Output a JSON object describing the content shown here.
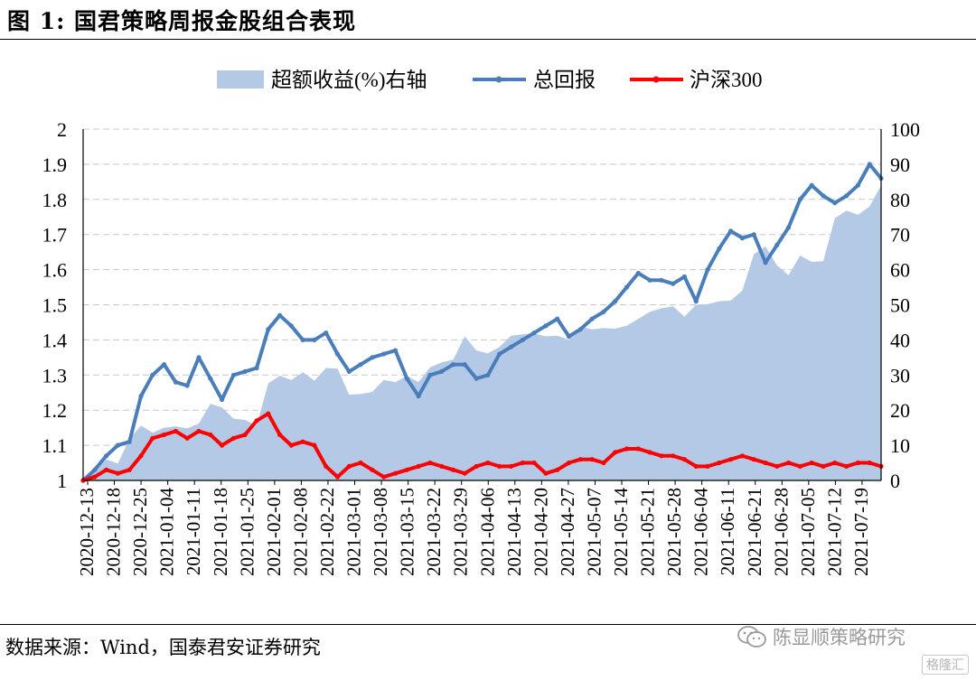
{
  "figure": {
    "title": "图 1:  国君策略周报金股组合表现",
    "source": "数据来源：Wind，国泰君安证券研究",
    "watermark": "陈显顺策略研究",
    "logo": "格隆汇"
  },
  "chart_data": {
    "type": "line",
    "legend_position": "top",
    "grid": "horizontal-dashed",
    "x_tick_labels": [
      "2020-12-13",
      "2020-12-18",
      "2020-12-25",
      "2021-01-04",
      "2021-01-11",
      "2021-01-18",
      "2021-01-25",
      "2021-02-01",
      "2021-02-08",
      "2021-02-22",
      "2021-03-01",
      "2021-03-08",
      "2021-03-15",
      "2021-03-22",
      "2021-03-29",
      "2021-04-06",
      "2021-04-13",
      "2021-04-20",
      "2021-04-27",
      "2021-05-07",
      "2021-05-14",
      "2021-05-21",
      "2021-05-28",
      "2021-06-04",
      "2021-06-11",
      "2021-06-21",
      "2021-06-28",
      "2021-07-05",
      "2021-07-12",
      "2021-07-19"
    ],
    "y_left": {
      "min": 1,
      "max": 2,
      "step": 0.1,
      "tick_labels": [
        "1",
        "1.1",
        "1.2",
        "1.3",
        "1.4",
        "1.5",
        "1.6",
        "1.7",
        "1.8",
        "1.9",
        "2"
      ]
    },
    "y_right": {
      "min": 0,
      "max": 100,
      "step": 10,
      "tick_labels": [
        "0",
        "10",
        "20",
        "30",
        "40",
        "50",
        "60",
        "70",
        "80",
        "90",
        "100"
      ]
    },
    "series": [
      {
        "name": "超额收益(%)右轴",
        "kind": "area",
        "axis": "right",
        "color": "#b4c9e6",
        "values": [
          0,
          2.3,
          6.0,
          4.8,
          11.8,
          15.6,
          13.6,
          15.0,
          15.4,
          14.8,
          16.2,
          21.8,
          20.8,
          17.6,
          17.2,
          15.6,
          27.6,
          29.8,
          28.6,
          30.8,
          28.4,
          32.0,
          31.8,
          24.4,
          24.6,
          25.2,
          28.6,
          28.0,
          29.8,
          28.0,
          32.2,
          33.6,
          34.4,
          41.0,
          37.0,
          36.2,
          38.0,
          41.2,
          41.6,
          41.8,
          41.0,
          41.2,
          40.0,
          43.8,
          43.0,
          43.4,
          43.2,
          44.0,
          46.0,
          48.0,
          49.0,
          49.6,
          46.6,
          50.0,
          50.2,
          51.0,
          51.2,
          54.0,
          64.4,
          66.6,
          61.2,
          58.4,
          64.0,
          62.2,
          62.4,
          74.6,
          76.8,
          75.6,
          78.0,
          84.0
        ]
      },
      {
        "name": "总回报",
        "kind": "line",
        "axis": "left",
        "color": "#4a7ebb",
        "values": [
          1.0,
          1.03,
          1.07,
          1.1,
          1.11,
          1.24,
          1.3,
          1.33,
          1.28,
          1.27,
          1.35,
          1.29,
          1.23,
          1.3,
          1.31,
          1.32,
          1.43,
          1.47,
          1.44,
          1.4,
          1.4,
          1.42,
          1.36,
          1.31,
          1.33,
          1.35,
          1.36,
          1.37,
          1.29,
          1.24,
          1.3,
          1.31,
          1.33,
          1.33,
          1.29,
          1.3,
          1.36,
          1.38,
          1.4,
          1.42,
          1.44,
          1.46,
          1.41,
          1.43,
          1.46,
          1.48,
          1.51,
          1.55,
          1.59,
          1.57,
          1.57,
          1.56,
          1.58,
          1.51,
          1.6,
          1.66,
          1.71,
          1.69,
          1.7,
          1.62,
          1.67,
          1.72,
          1.8,
          1.84,
          1.81,
          1.79,
          1.81,
          1.84,
          1.9,
          1.86
        ]
      },
      {
        "name": "沪深300",
        "kind": "line",
        "axis": "left",
        "color": "#ff0000",
        "values": [
          1.0,
          1.01,
          1.03,
          1.02,
          1.03,
          1.07,
          1.12,
          1.13,
          1.14,
          1.12,
          1.14,
          1.13,
          1.1,
          1.12,
          1.13,
          1.17,
          1.19,
          1.13,
          1.1,
          1.11,
          1.1,
          1.04,
          1.01,
          1.04,
          1.05,
          1.03,
          1.01,
          1.02,
          1.03,
          1.04,
          1.05,
          1.04,
          1.03,
          1.02,
          1.04,
          1.05,
          1.04,
          1.04,
          1.05,
          1.05,
          1.02,
          1.03,
          1.05,
          1.06,
          1.06,
          1.05,
          1.08,
          1.09,
          1.09,
          1.08,
          1.07,
          1.07,
          1.06,
          1.04,
          1.04,
          1.05,
          1.06,
          1.07,
          1.06,
          1.05,
          1.04,
          1.05,
          1.04,
          1.05,
          1.04,
          1.05,
          1.04,
          1.05,
          1.05,
          1.04
        ]
      }
    ]
  }
}
